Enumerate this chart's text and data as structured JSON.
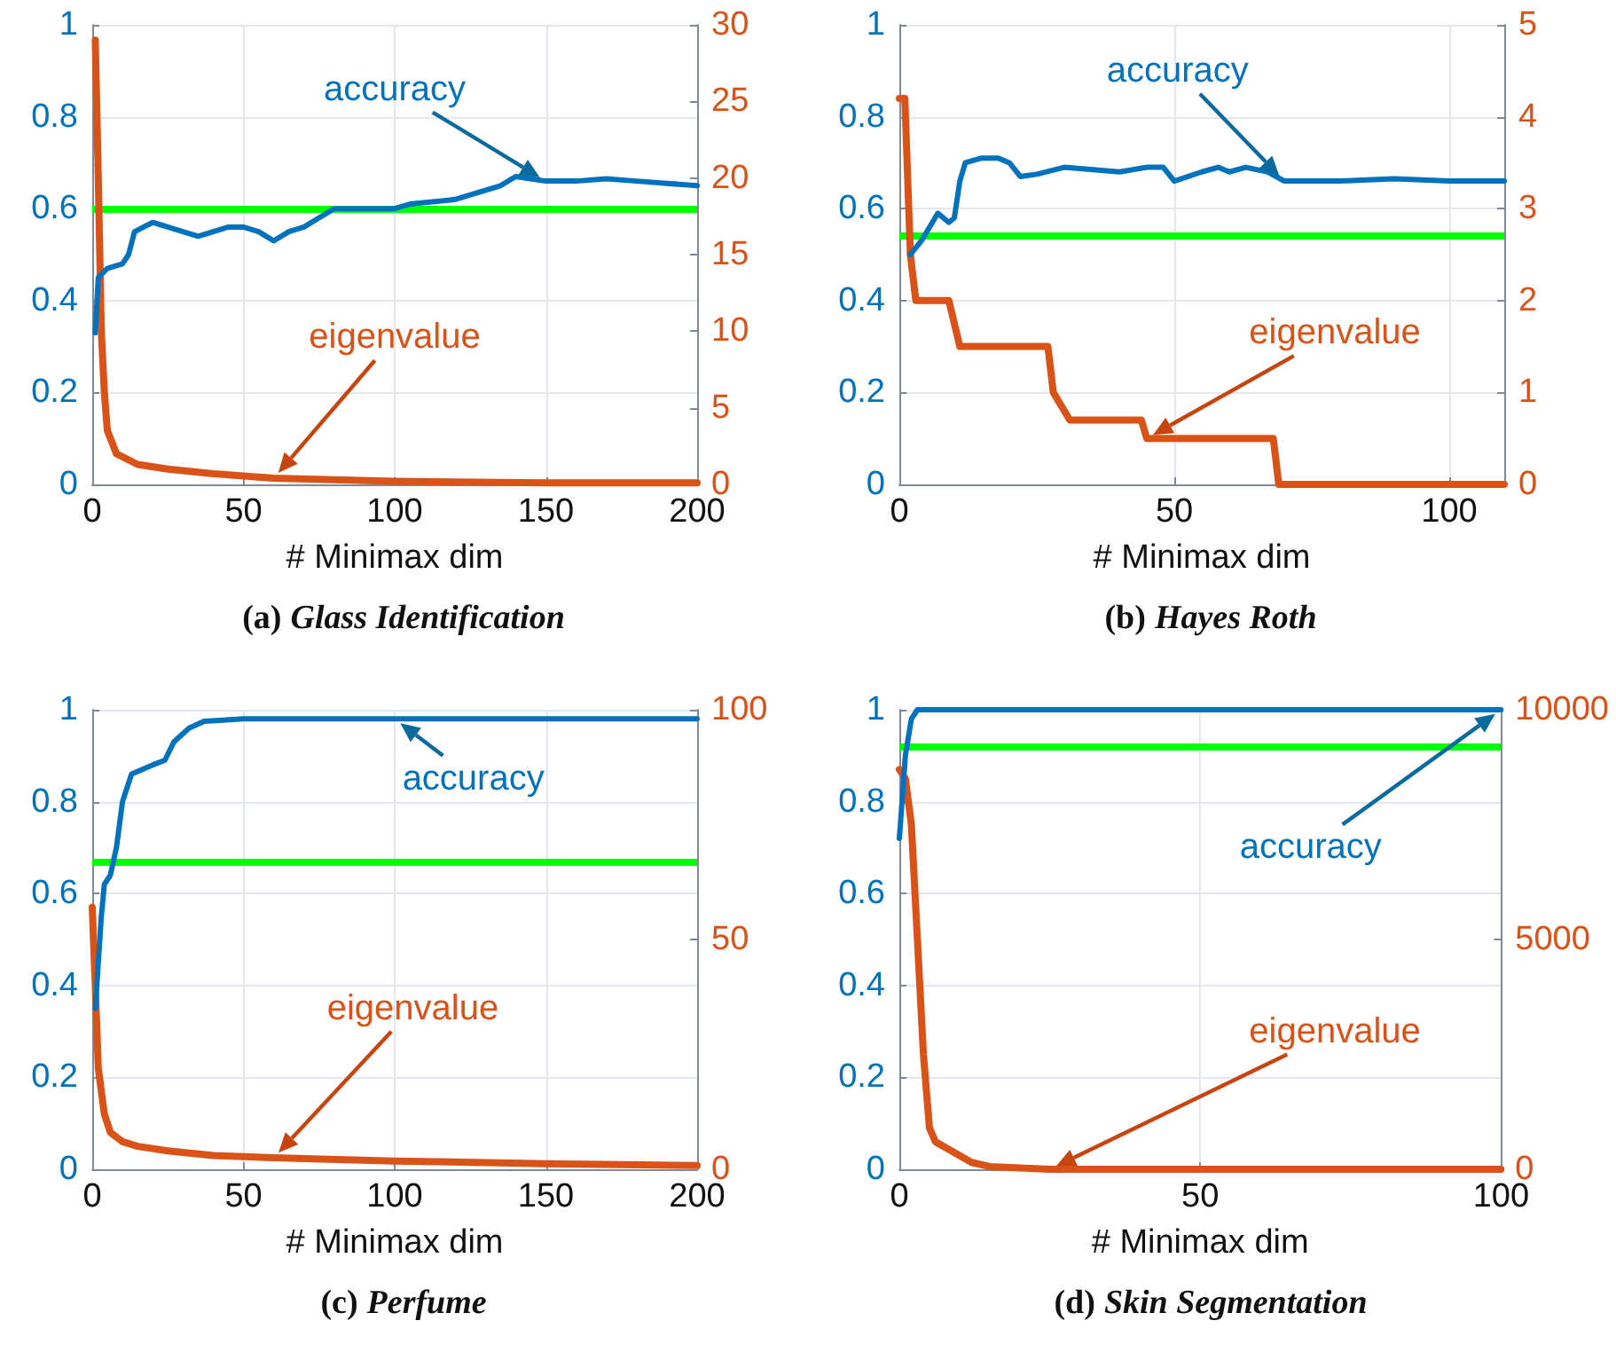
{
  "chart_data": [
    {
      "type": "line",
      "title": "(a) Glass Identification",
      "xlabel": "# Minimax dim",
      "xlim": [
        0,
        200
      ],
      "xticks": [
        0,
        50,
        100,
        150,
        200
      ],
      "ylim": [
        0,
        1
      ],
      "yticks": [
        0,
        0.2,
        0.4,
        0.6,
        0.8,
        1
      ],
      "y2lim": [
        0,
        30
      ],
      "y2ticks": [
        0,
        5,
        10,
        15,
        20,
        25,
        30
      ],
      "grid": true,
      "ref_lines": [
        {
          "axis": "y",
          "value": 0.6,
          "color": "#00ff00"
        }
      ],
      "series": [
        {
          "name": "accuracy",
          "color": "#0072bd",
          "x": [
            1,
            2,
            5,
            10,
            12,
            14,
            20,
            30,
            35,
            45,
            50,
            55,
            60,
            65,
            70,
            75,
            80,
            90,
            100,
            105,
            120,
            125,
            135,
            140,
            150,
            160,
            170,
            180,
            190,
            200
          ],
          "values": [
            0.33,
            0.45,
            0.47,
            0.48,
            0.5,
            0.55,
            0.57,
            0.55,
            0.54,
            0.56,
            0.56,
            0.55,
            0.53,
            0.55,
            0.56,
            0.58,
            0.6,
            0.6,
            0.6,
            0.61,
            0.62,
            0.63,
            0.65,
            0.67,
            0.66,
            0.66,
            0.665,
            0.66,
            0.655,
            0.65
          ]
        },
        {
          "name": "eigenvalue",
          "color": "#d95319",
          "axis": "y2",
          "x": [
            1,
            2,
            3,
            4,
            5,
            8,
            15,
            25,
            40,
            60,
            80,
            100,
            150,
            200
          ],
          "values": [
            29,
            20,
            10,
            6,
            3.5,
            2,
            1.3,
            1,
            0.7,
            0.4,
            0.3,
            0.2,
            0.1,
            0.1
          ]
        }
      ]
    },
    {
      "type": "line",
      "title": "(b) Hayes Roth",
      "xlabel": "# Minimax dim",
      "xlim": [
        0,
        110
      ],
      "xticks": [
        0,
        50,
        100
      ],
      "ylim": [
        0,
        1
      ],
      "yticks": [
        0,
        0.2,
        0.4,
        0.6,
        0.8,
        1
      ],
      "y2lim": [
        0,
        5
      ],
      "y2ticks": [
        0,
        1,
        2,
        3,
        4,
        5
      ],
      "grid": true,
      "ref_lines": [
        {
          "axis": "y",
          "value": 0.54,
          "color": "#00ff00"
        }
      ],
      "series": [
        {
          "name": "accuracy",
          "color": "#0072bd",
          "x": [
            2,
            4,
            6,
            7,
            9,
            10,
            11,
            12,
            15,
            18,
            20,
            22,
            25,
            30,
            40,
            45,
            48,
            50,
            55,
            58,
            60,
            63,
            67,
            70,
            80,
            90,
            100,
            110
          ],
          "values": [
            0.5,
            0.53,
            0.57,
            0.59,
            0.57,
            0.58,
            0.66,
            0.7,
            0.71,
            0.71,
            0.7,
            0.67,
            0.675,
            0.69,
            0.68,
            0.69,
            0.69,
            0.66,
            0.68,
            0.69,
            0.68,
            0.69,
            0.68,
            0.66,
            0.66,
            0.665,
            0.66,
            0.66
          ]
        },
        {
          "name": "eigenvalue",
          "color": "#d95319",
          "axis": "y2",
          "x": [
            0,
            1,
            2,
            3,
            9,
            11,
            27,
            28,
            31,
            44,
            45,
            68,
            69,
            110
          ],
          "values": [
            4.2,
            4.2,
            2.5,
            2,
            2,
            1.5,
            1.5,
            1,
            0.7,
            0.7,
            0.5,
            0.5,
            0,
            0
          ]
        }
      ]
    },
    {
      "type": "line",
      "title": "(c) Perfume",
      "xlabel": "# Minimax dim",
      "xlim": [
        0,
        200
      ],
      "xticks": [
        0,
        50,
        100,
        150,
        200
      ],
      "ylim": [
        0,
        1
      ],
      "yticks": [
        0,
        0.2,
        0.4,
        0.6,
        0.8,
        1
      ],
      "y2lim": [
        0,
        100
      ],
      "y2ticks": [
        0,
        50,
        100
      ],
      "grid": true,
      "ref_lines": [
        {
          "axis": "y",
          "value": 0.67,
          "color": "#00ff00"
        }
      ],
      "series": [
        {
          "name": "accuracy",
          "color": "#0072bd",
          "x": [
            1,
            3,
            4,
            6,
            8,
            10,
            13,
            20,
            24,
            27,
            32,
            37,
            50,
            100,
            200
          ],
          "values": [
            0.35,
            0.55,
            0.62,
            0.64,
            0.7,
            0.8,
            0.86,
            0.88,
            0.89,
            0.93,
            0.96,
            0.975,
            0.98,
            0.98,
            0.98
          ]
        },
        {
          "name": "eigenvalue",
          "color": "#d95319",
          "axis": "y2",
          "x": [
            0,
            1,
            2,
            4,
            6,
            10,
            15,
            25,
            40,
            60,
            100,
            150,
            200
          ],
          "values": [
            57,
            40,
            22,
            12,
            8,
            6,
            5,
            4,
            3,
            2.5,
            1.8,
            1.2,
            0.8
          ]
        }
      ]
    },
    {
      "type": "line",
      "title": "(d) Skin Segmentation",
      "xlabel": "# Minimax dim",
      "xlim": [
        0,
        100
      ],
      "xticks": [
        0,
        50,
        100
      ],
      "ylim": [
        0,
        1
      ],
      "yticks": [
        0,
        0.2,
        0.4,
        0.6,
        0.8,
        1
      ],
      "y2lim": [
        0,
        10000
      ],
      "y2ticks": [
        0,
        5000,
        10000
      ],
      "grid": true,
      "ref_lines": [
        {
          "axis": "y",
          "value": 0.92,
          "color": "#00ff00"
        }
      ],
      "series": [
        {
          "name": "accuracy",
          "color": "#0072bd",
          "x": [
            0,
            1,
            2,
            3,
            100
          ],
          "values": [
            0.72,
            0.9,
            0.98,
            1,
            1
          ]
        },
        {
          "name": "eigenvalue",
          "color": "#d95319",
          "axis": "y2",
          "x": [
            0,
            1,
            2,
            3,
            4,
            5,
            6,
            8,
            10,
            12,
            15,
            25,
            100
          ],
          "values": [
            8700,
            8500,
            7500,
            5000,
            2500,
            900,
            600,
            450,
            300,
            150,
            60,
            0,
            0
          ]
        }
      ]
    }
  ]
}
